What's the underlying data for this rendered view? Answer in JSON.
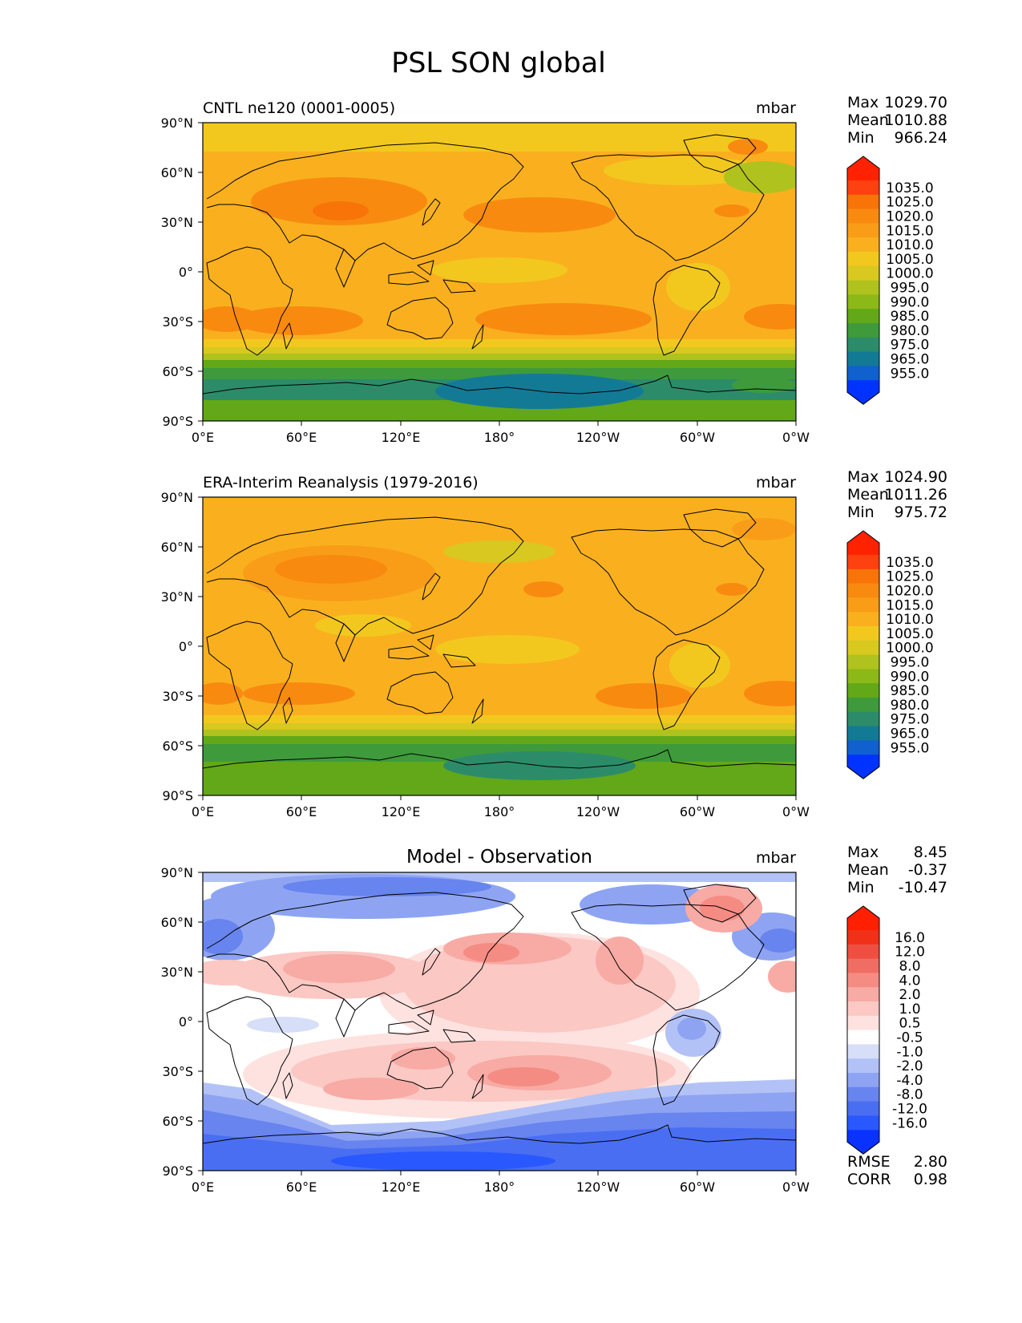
{
  "figure": {
    "title": "PSL SON global"
  },
  "axes": {
    "lat_labels": [
      "90°N",
      "60°N",
      "30°N",
      "0°",
      "30°S",
      "60°S",
      "90°S"
    ],
    "lon_labels": [
      "0°E",
      "60°E",
      "120°E",
      "180°",
      "120°W",
      "60°W",
      "0°W"
    ]
  },
  "panels": [
    {
      "title": "CNTL ne120 (0001-0005)",
      "units": "mbar",
      "stats": {
        "max_label": "Max",
        "max": "1029.70",
        "mean_label": "Mean",
        "mean": "1010.88",
        "min_label": "Min",
        "min": "966.24"
      },
      "colorbar_labels": [
        "1035.0",
        "1025.0",
        "1020.0",
        "1015.0",
        "1010.0",
        "1005.0",
        "1000.0",
        "995.0",
        "990.0",
        "985.0",
        "980.0",
        "975.0",
        "965.0",
        "955.0"
      ]
    },
    {
      "title": "ERA-Interim Reanalysis (1979-2016)",
      "units": "mbar",
      "stats": {
        "max_label": "Max",
        "max": "1024.90",
        "mean_label": "Mean",
        "mean": "1011.26",
        "min_label": "Min",
        "min": "975.72"
      },
      "colorbar_labels": [
        "1035.0",
        "1025.0",
        "1020.0",
        "1015.0",
        "1010.0",
        "1005.0",
        "1000.0",
        "995.0",
        "990.0",
        "985.0",
        "980.0",
        "975.0",
        "965.0",
        "955.0"
      ]
    },
    {
      "title": "Model - Observation",
      "units": "mbar",
      "stats": {
        "max_label": "Max",
        "max": "8.45",
        "mean_label": "Mean",
        "mean": "-0.37",
        "min_label": "Min",
        "min": "-10.47"
      },
      "colorbar_labels": [
        "16.0",
        "12.0",
        "8.0",
        "4.0",
        "2.0",
        "1.0",
        "0.5",
        "-0.5",
        "-1.0",
        "-2.0",
        "-4.0",
        "-8.0",
        "-12.0",
        "-16.0"
      ],
      "metrics": {
        "rmse_label": "RMSE",
        "rmse": "2.80",
        "corr_label": "CORR",
        "corr": "0.98"
      }
    }
  ],
  "colors": {
    "psl_scale": [
      "#0033ff",
      "#1060d0",
      "#137a96",
      "#2c8c6a",
      "#3f9a3c",
      "#62a818",
      "#8cb818",
      "#b0c21e",
      "#d8c820",
      "#f2c81e",
      "#fab01e",
      "#f99d18",
      "#f98a10",
      "#f87408",
      "#ff4010",
      "#ff2200"
    ],
    "diff_scale": [
      "#0a32ff",
      "#2a58ff",
      "#4a6ef2",
      "#6784ef",
      "#8ea4f3",
      "#b3c2f6",
      "#d6def8",
      "#ffffff",
      "#fde2e0",
      "#fbc8c4",
      "#f8aaa4",
      "#f58c84",
      "#f06d63",
      "#ee4f40",
      "#f03018",
      "#ff2000"
    ],
    "coastline": "#000000"
  }
}
